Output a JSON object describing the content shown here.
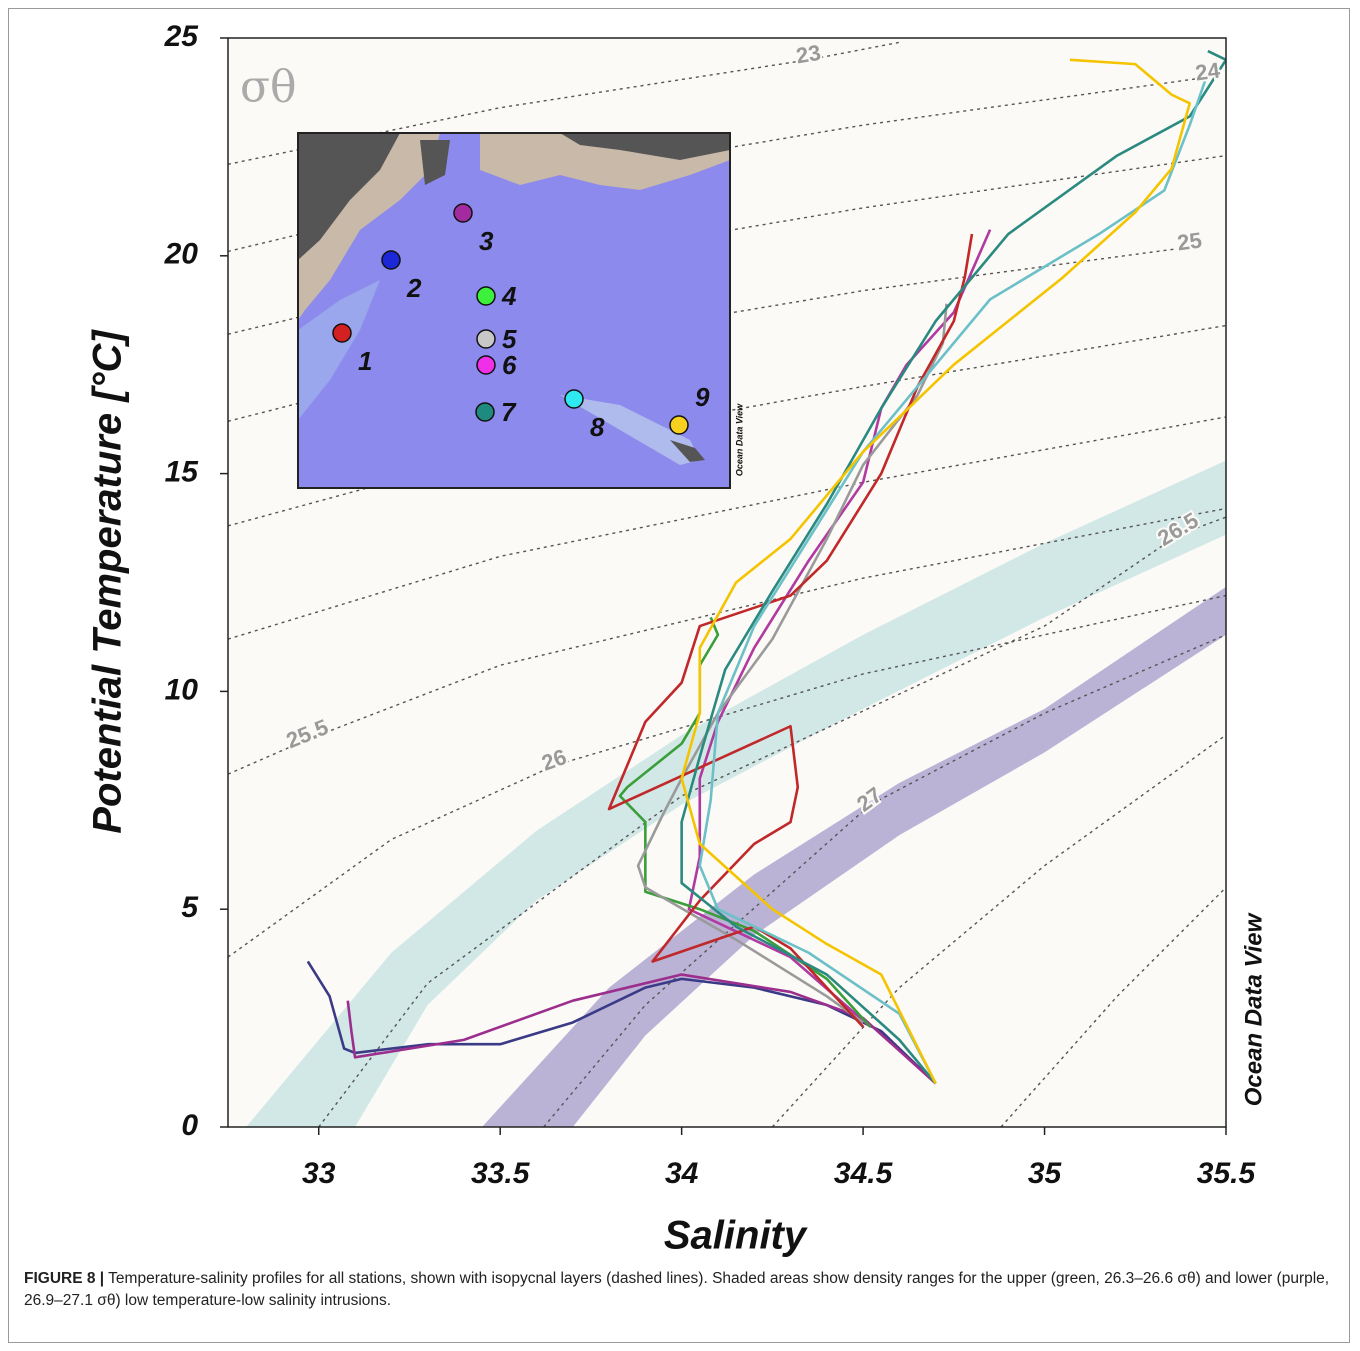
{
  "chart_data": {
    "type": "line",
    "xlabel": "Salinity",
    "ylabel": "Potential Temperature [°C]",
    "density_label": "σθ",
    "watermark": "Ocean Data View",
    "xlim": [
      32.75,
      35.5
    ],
    "ylim": [
      0,
      25
    ],
    "xticks": [
      33,
      33.5,
      34,
      34.5,
      35,
      35.5
    ],
    "yticks": [
      0,
      5,
      10,
      15,
      20,
      25
    ],
    "bands": [
      {
        "color": "#cde5e4",
        "x": [
          32.8,
          33.2,
          33.6,
          34.0,
          34.5,
          35.0,
          35.5,
          35.5,
          35.0,
          34.5,
          34.0,
          33.6,
          33.3,
          33.1
        ],
        "y": [
          0,
          4,
          6.8,
          9.0,
          11.3,
          13.4,
          15.3,
          13.6,
          11.7,
          9.6,
          7.4,
          5.2,
          2.8,
          0
        ]
      },
      {
        "color": "#b4abd2",
        "x": [
          33.45,
          33.8,
          34.2,
          34.6,
          35.0,
          35.5,
          35.5,
          35.0,
          34.6,
          34.2,
          33.9,
          33.7
        ],
        "y": [
          0,
          3.2,
          5.8,
          7.9,
          9.6,
          12.4,
          11.3,
          8.6,
          6.7,
          4.4,
          2.1,
          0
        ]
      }
    ],
    "isopycnals": [
      {
        "label": "23",
        "x": [
          32.75,
          33.5,
          34.35,
          34.6
        ],
        "y": [
          22.1,
          23.4,
          24.5,
          24.9
        ]
      },
      {
        "label": "24",
        "x": [
          32.75,
          33.5,
          34.5,
          35.45
        ],
        "y": [
          20.1,
          21.6,
          23.0,
          24.1
        ]
      },
      {
        "label": null,
        "x": [
          32.75,
          33.5,
          34.5,
          35.5
        ],
        "y": [
          18.2,
          19.7,
          21.1,
          22.3
        ]
      },
      {
        "label": "25",
        "x": [
          32.75,
          33.5,
          34.5,
          35.4
        ],
        "y": [
          16.2,
          17.8,
          19.2,
          20.2
        ]
      },
      {
        "label": null,
        "x": [
          32.75,
          33.5,
          34.5,
          35.5
        ],
        "y": [
          13.8,
          15.5,
          17.0,
          18.4
        ]
      },
      {
        "label": null,
        "x": [
          32.75,
          33.5,
          34.5,
          35.5
        ],
        "y": [
          11.2,
          13.1,
          14.8,
          16.3
        ]
      },
      {
        "label": "25.5",
        "x": [
          32.75,
          32.97,
          33.5,
          34.5,
          35.5
        ],
        "y": [
          8.1,
          8.9,
          10.6,
          12.6,
          14.2
        ]
      },
      {
        "label": "26",
        "x": [
          32.75,
          33.2,
          33.65,
          34.5,
          35.5
        ],
        "y": [
          3.9,
          6.6,
          8.3,
          10.4,
          12.2
        ]
      },
      {
        "label": "26.5",
        "x": [
          33.0,
          33.3,
          34.0,
          35.0,
          35.37,
          35.5
        ],
        "y": [
          0,
          3.3,
          7.6,
          11.5,
          13.6,
          14.0
        ]
      },
      {
        "label": "27",
        "x": [
          33.62,
          33.9,
          34.52,
          35.0,
          35.5
        ],
        "y": [
          0,
          2.8,
          7.4,
          9.5,
          11.3
        ]
      },
      {
        "label": null,
        "x": [
          34.25,
          34.6,
          35.0,
          35.5
        ],
        "y": [
          0,
          3.2,
          6.0,
          9.0
        ]
      },
      {
        "label": null,
        "x": [
          34.88,
          35.2,
          35.5
        ],
        "y": [
          0,
          3.0,
          5.5
        ]
      }
    ],
    "series": [
      {
        "color": "#3b3a86",
        "x": [
          32.97,
          33.03,
          33.05,
          33.07,
          33.1,
          33.3,
          33.5,
          33.7,
          33.9,
          34.0,
          34.2,
          34.4,
          34.55,
          34.7
        ],
        "y": [
          3.8,
          3.0,
          2.4,
          1.8,
          1.7,
          1.9,
          1.9,
          2.4,
          3.2,
          3.4,
          3.2,
          2.8,
          2.2,
          1.0
        ]
      },
      {
        "color": "#9c2f8e",
        "x": [
          33.08,
          33.09,
          33.1,
          33.4,
          33.7,
          34.0,
          34.3,
          34.5,
          34.7
        ],
        "y": [
          2.9,
          2.2,
          1.6,
          2.0,
          2.9,
          3.5,
          3.1,
          2.5,
          1.0
        ]
      },
      {
        "color": "#b03aa0",
        "x": [
          34.85,
          34.75,
          34.62,
          34.55,
          34.5,
          34.35,
          34.2,
          34.1,
          34.05,
          34.05,
          34.02,
          34.3,
          34.52
        ],
        "y": [
          20.6,
          18.7,
          17.5,
          16.5,
          14.8,
          13.0,
          11.0,
          9.3,
          8.0,
          6.2,
          5.0,
          3.9,
          2.3
        ]
      },
      {
        "color": "#3a9e3a",
        "x": [
          34.08,
          34.1,
          34.05,
          34.05,
          34.0,
          33.85,
          33.83,
          33.9,
          33.9,
          33.9,
          34.05,
          34.2,
          34.4,
          34.52
        ],
        "y": [
          11.7,
          11.3,
          10.6,
          9.5,
          8.8,
          7.8,
          7.6,
          7.0,
          6.0,
          5.4,
          5.0,
          4.5,
          3.4,
          2.3
        ]
      },
      {
        "color": "#9a9a9a",
        "x": [
          34.73,
          34.72,
          34.65,
          34.5,
          34.4,
          34.25,
          34.1,
          34.0,
          33.95,
          33.88,
          33.9,
          34.15,
          34.4,
          34.5
        ],
        "y": [
          18.9,
          18.0,
          16.8,
          15.2,
          13.5,
          11.2,
          9.5,
          8.0,
          7.2,
          6.0,
          5.5,
          4.3,
          3.0,
          2.4
        ]
      },
      {
        "color": "#c0282a",
        "x": [
          34.8,
          34.78,
          34.75,
          34.65,
          34.55,
          34.4,
          34.3,
          34.05,
          34.0,
          33.9,
          33.8,
          34.3,
          34.32,
          34.3,
          34.2,
          34.05,
          33.92,
          34.2,
          34.3,
          34.5
        ],
        "y": [
          20.5,
          19.5,
          18.5,
          17.0,
          15.0,
          13.0,
          12.2,
          11.5,
          10.2,
          9.3,
          7.3,
          9.2,
          7.8,
          7.0,
          6.5,
          5.2,
          3.8,
          4.6,
          4.1,
          2.3
        ]
      },
      {
        "color": "#2a8a80",
        "x": [
          35.45,
          35.5,
          35.4,
          35.2,
          34.9,
          34.7,
          34.55,
          34.4,
          34.25,
          34.12,
          34.05,
          34.0,
          34.0,
          34.15,
          34.4,
          34.6,
          34.7
        ],
        "y": [
          24.7,
          24.5,
          23.2,
          22.3,
          20.5,
          18.5,
          16.5,
          14.3,
          12.3,
          10.5,
          8.5,
          7.0,
          5.6,
          4.6,
          3.5,
          2.0,
          1.0
        ]
      },
      {
        "color": "#6cc0c8",
        "x": [
          35.45,
          35.4,
          35.33,
          35.15,
          34.85,
          34.65,
          34.5,
          34.35,
          34.2,
          34.1,
          34.08,
          34.05,
          34.1,
          34.35,
          34.6,
          34.7
        ],
        "y": [
          24.2,
          23.0,
          21.5,
          20.5,
          19.0,
          17.0,
          15.5,
          13.5,
          11.5,
          9.5,
          7.5,
          6.0,
          5.0,
          4.0,
          2.6,
          1.0
        ]
      },
      {
        "color": "#f5c400",
        "x": [
          35.07,
          35.25,
          35.35,
          35.4,
          35.35,
          35.25,
          35.05,
          34.75,
          34.5,
          34.3,
          34.15,
          34.05,
          34.05,
          34.0,
          34.05,
          34.25,
          34.4,
          34.55,
          34.7
        ],
        "y": [
          24.5,
          24.4,
          23.7,
          23.5,
          22.0,
          21.0,
          19.5,
          17.5,
          15.5,
          13.5,
          12.5,
          11.0,
          9.5,
          8.0,
          6.5,
          5.0,
          4.2,
          3.5,
          1.0
        ]
      }
    ],
    "inset_map": {
      "watermark": "Ocean Data View",
      "stations": [
        {
          "label": "1",
          "color": "#d42020"
        },
        {
          "label": "2",
          "color": "#1c28d8"
        },
        {
          "label": "3",
          "color": "#a42aa0"
        },
        {
          "label": "4",
          "color": "#3cf03c"
        },
        {
          "label": "5",
          "color": "#c8c8c8"
        },
        {
          "label": "6",
          "color": "#f030e8"
        },
        {
          "label": "7",
          "color": "#1e8a80"
        },
        {
          "label": "8",
          "color": "#30e8f0"
        },
        {
          "label": "9",
          "color": "#f8d020"
        }
      ]
    }
  },
  "caption": {
    "label": "FIGURE 8 |",
    "text": "Temperature-salinity profiles for all stations, shown with isopycnal layers (dashed lines). Shaded areas show density ranges for the upper (green, 26.3–26.6 σθ) and lower (purple, 26.9–27.1 σθ) low temperature-low salinity intrusions."
  }
}
